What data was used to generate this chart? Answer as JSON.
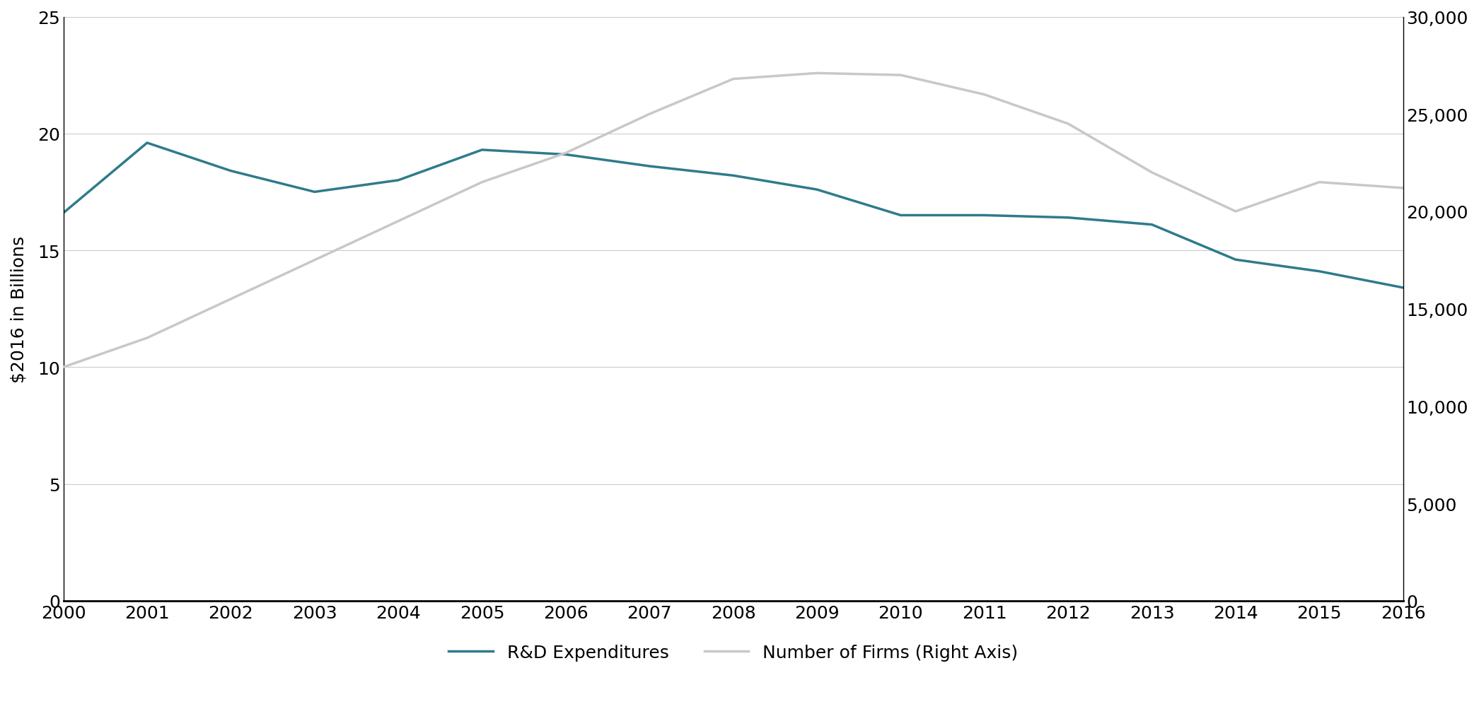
{
  "years": [
    2000,
    2001,
    2002,
    2003,
    2004,
    2005,
    2006,
    2007,
    2008,
    2009,
    2010,
    2011,
    2012,
    2013,
    2014,
    2015,
    2016
  ],
  "rd_expenditures": [
    16.6,
    19.6,
    18.4,
    17.5,
    18.0,
    19.3,
    19.1,
    18.6,
    18.2,
    17.6,
    16.5,
    16.5,
    16.4,
    16.1,
    14.6,
    14.1,
    13.4
  ],
  "num_firms": [
    12000,
    13500,
    15500,
    17500,
    19500,
    21500,
    23000,
    25000,
    26800,
    27100,
    27000,
    26000,
    24500,
    22000,
    20000,
    21500,
    21200
  ],
  "rd_color": "#2e7b8c",
  "firms_color": "#c8c8c8",
  "left_ylim": [
    0,
    25
  ],
  "right_ylim": [
    0,
    30000
  ],
  "left_yticks": [
    0,
    5,
    10,
    15,
    20,
    25
  ],
  "right_yticks": [
    0,
    5000,
    10000,
    15000,
    20000,
    25000,
    30000
  ],
  "ylabel_left": "$2016 in Billions",
  "legend_rd": "R&D Expenditures",
  "legend_firms": "Number of Firms (Right Axis)",
  "line_width": 2.5,
  "background_color": "#ffffff",
  "grid_color": "#cccccc",
  "tick_label_fontsize": 18,
  "ylabel_fontsize": 18,
  "legend_fontsize": 18
}
